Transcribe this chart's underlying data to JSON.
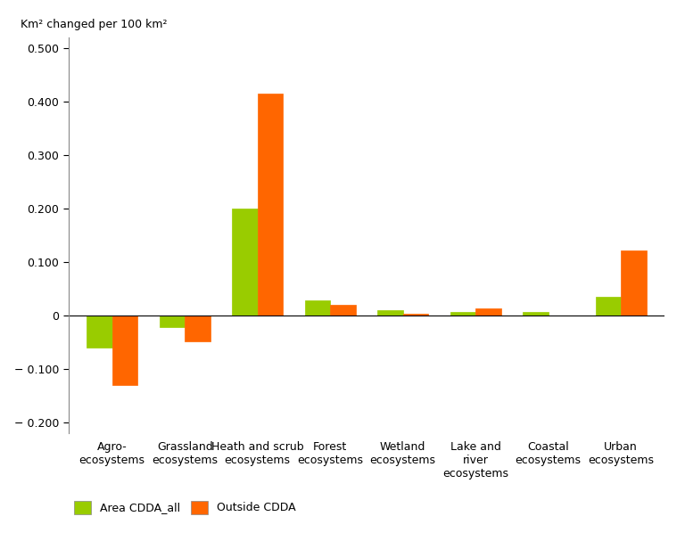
{
  "categories": [
    "Agro-\necosystems",
    "Grassland\necosystems",
    "Heath and scrub\necosystems",
    "Forest\necosystems",
    "Wetland\necosystems",
    "Lake and\nriver\necosystems",
    "Coastal\necosystems",
    "Urban\necosystems"
  ],
  "cdda_all": [
    -0.06,
    -0.022,
    0.2,
    0.028,
    0.01,
    0.006,
    0.007,
    0.035
  ],
  "outside_cdda": [
    -0.13,
    -0.048,
    0.416,
    0.02,
    0.003,
    0.013,
    0.0,
    0.122
  ],
  "cdda_color": "#99cc00",
  "outside_color": "#ff6600",
  "ylabel": "Km² changed per 100 km²",
  "ylim": [
    -0.22,
    0.52
  ],
  "yticks": [
    -0.2,
    -0.1,
    0.0,
    0.1,
    0.2,
    0.3,
    0.4,
    0.5
  ],
  "ytick_labels": [
    "− 0.200",
    "− 0.100",
    "0",
    "0.100",
    "0.200",
    "0.300",
    "0.400",
    "0.500"
  ],
  "bar_width": 0.35,
  "legend_cdda": "Area CDDA_all",
  "legend_outside": "Outside CDDA",
  "background_color": "#ffffff"
}
